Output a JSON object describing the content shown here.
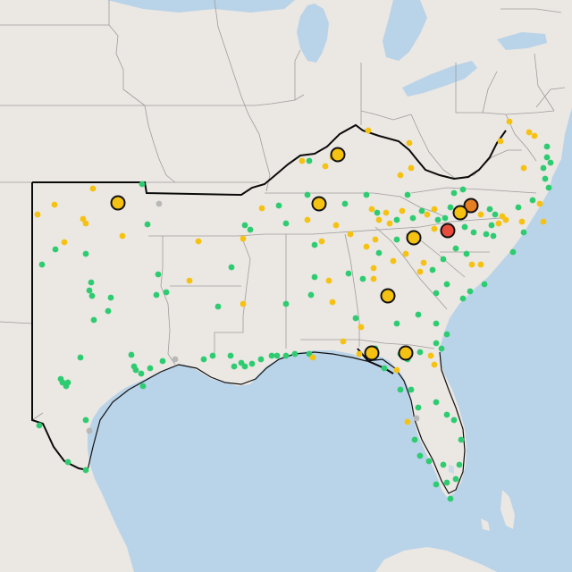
{
  "map": {
    "colors": {
      "water": "#b9d3e8",
      "land": "#ebe7e3",
      "land_inner": "#ece9e5",
      "state_border": "#9d9d9d",
      "region_outline": "#0b0b0b",
      "status_green": "#2ecc71",
      "status_yellow": "#f5c211",
      "status_orange": "#e67e22",
      "status_red": "#e74c3c",
      "status_gray": "#b8b8b8",
      "marker_stroke": "#111111"
    },
    "legend_levels": [
      "green",
      "yellow",
      "orange",
      "red",
      "gray"
    ]
  }
}
